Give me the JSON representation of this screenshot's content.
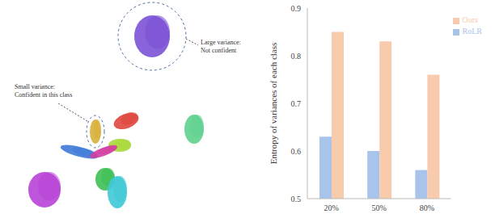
{
  "chart_data": {
    "type": "bar",
    "categories": [
      "20%",
      "50%",
      "80%"
    ],
    "series": [
      {
        "name": "RoLR",
        "color": "#a9c4eb",
        "values": [
          0.63,
          0.6,
          0.56
        ]
      },
      {
        "name": "Ours",
        "color": "#f8cbad",
        "values": [
          0.85,
          0.83,
          0.76
        ]
      }
    ],
    "ylabel": "Entropy of variances of each class",
    "ylim": [
      0.5,
      0.9
    ],
    "yticks": [
      0.5,
      0.6,
      0.7,
      0.8,
      0.9
    ],
    "grid": false,
    "legend": "upper right"
  },
  "diagram": {
    "large_label": [
      "Large variance:",
      "Not confident"
    ],
    "small_label": [
      "Small variance:",
      "Confident in this class"
    ],
    "cluster_colors": [
      "#7b52d6",
      "#d8b13b",
      "#e0463e",
      "#a8d83a",
      "#5fd18f",
      "#3f7bd8",
      "#d43ea0",
      "#3fbf55",
      "#b743d6",
      "#3fc9d6"
    ]
  }
}
